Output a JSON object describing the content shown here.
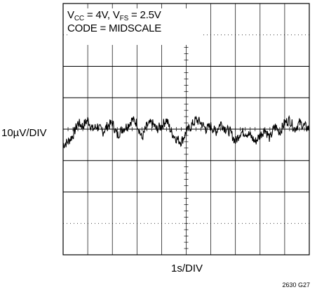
{
  "annotations": {
    "legend_line1": {
      "a": "V",
      "a_sub": "CC",
      "b": " = 4V, V",
      "b_sub": "FS",
      "c": " = 2.5V"
    },
    "legend_line2": "CODE = MIDSCALE",
    "y_scale": "10µV/DIV",
    "x_scale": "1s/DIV",
    "figure_id": "2630 G27"
  },
  "chart_data": {
    "type": "line",
    "title": "",
    "xlabel": "1s/DIV",
    "ylabel": "10µV/DIV",
    "x_unit": "s",
    "y_unit": "µV",
    "xlim": [
      0,
      10
    ],
    "ylim": [
      -40,
      40
    ],
    "x_divisions": 10,
    "y_divisions": 8,
    "grid": true,
    "series": [
      {
        "name": "",
        "x": [
          0.0,
          0.2,
          0.4,
          0.6,
          0.8,
          1.0,
          1.2,
          1.4,
          1.6,
          1.8,
          2.0,
          2.2,
          2.4,
          2.6,
          2.8,
          3.0,
          3.2,
          3.4,
          3.6,
          3.8,
          4.0,
          4.2,
          4.4,
          4.6,
          4.8,
          5.0,
          5.2,
          5.4,
          5.6,
          5.8,
          6.0,
          6.2,
          6.4,
          6.6,
          6.8,
          7.0,
          7.2,
          7.4,
          7.6,
          7.8,
          8.0,
          8.2,
          8.4,
          8.6,
          8.8,
          9.0,
          9.2,
          9.4,
          9.6,
          9.8,
          10.0
        ],
        "y": [
          -5,
          -4,
          -2,
          2,
          1,
          3,
          0,
          1,
          -1,
          1,
          2,
          -2,
          0,
          1,
          3,
          2,
          -3,
          1,
          2,
          0,
          1,
          3,
          -1,
          -3,
          -4,
          -1,
          1,
          3,
          2,
          0,
          1,
          -1,
          2,
          0,
          -1,
          -4,
          -1,
          -1,
          -2,
          -4,
          -2,
          0,
          -3,
          1,
          -1,
          2,
          3,
          0,
          2,
          1,
          0
        ]
      }
    ]
  }
}
